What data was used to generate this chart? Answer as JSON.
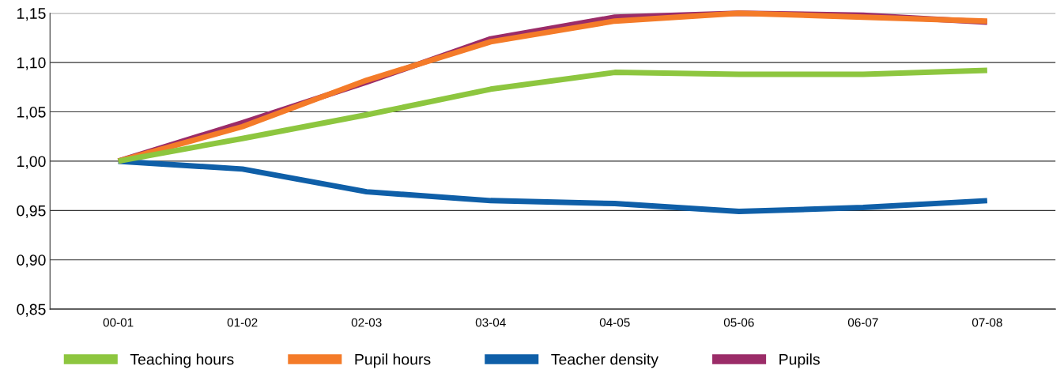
{
  "chart_data": {
    "type": "line",
    "categories": [
      "00-01",
      "01-02",
      "02-03",
      "03-04",
      "04-05",
      "05-06",
      "06-07",
      "07-08"
    ],
    "series": [
      {
        "name": "Teaching hours",
        "color": "#8dc63f",
        "values": [
          1.0,
          1.023,
          1.047,
          1.073,
          1.09,
          1.088,
          1.088,
          1.092
        ]
      },
      {
        "name": "Pupil hours",
        "color": "#f47b29",
        "values": [
          1.0,
          1.035,
          1.082,
          1.121,
          1.142,
          1.15,
          1.146,
          1.142
        ]
      },
      {
        "name": "Teacher density",
        "color": "#0f5fa8",
        "values": [
          1.0,
          0.992,
          0.969,
          0.96,
          0.957,
          0.949,
          0.953,
          0.96
        ]
      },
      {
        "name": "Pupils",
        "color": "#9b2c68",
        "values": [
          1.0,
          1.039,
          1.08,
          1.124,
          1.146,
          1.15,
          1.148,
          1.141
        ]
      }
    ],
    "ylim": [
      0.85,
      1.15
    ],
    "yticks": [
      {
        "value": 0.85,
        "label": "0,85"
      },
      {
        "value": 0.9,
        "label": "0,90"
      },
      {
        "value": 0.95,
        "label": "0,95"
      },
      {
        "value": 1.0,
        "label": "1,00"
      },
      {
        "value": 1.05,
        "label": "1,05"
      },
      {
        "value": 1.1,
        "label": "1,10"
      },
      {
        "value": 1.15,
        "label": "1,15"
      }
    ],
    "grid": "y",
    "legend": "bottom",
    "marker": "none",
    "line_style": "solid"
  }
}
